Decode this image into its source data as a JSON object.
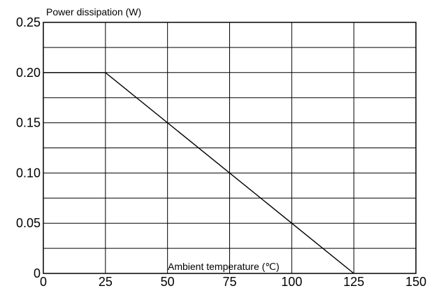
{
  "chart_data": {
    "type": "line",
    "ylabel": "Power dissipation (W)",
    "xlabel": "Ambient temperature (℃)",
    "xlim": [
      0,
      150
    ],
    "ylim": [
      0,
      0.25
    ],
    "x_ticks": [
      0,
      25,
      50,
      75,
      100,
      125,
      150
    ],
    "x_tick_labels": [
      "0",
      "25",
      "50",
      "75",
      "100",
      "125",
      "150"
    ],
    "y_ticks": [
      0,
      0.05,
      0.1,
      0.15,
      0.2,
      0.25
    ],
    "y_tick_labels": [
      "0",
      "0.05",
      "0.10",
      "0.15",
      "0.20",
      "0.25"
    ],
    "y_minor_gridlines": [
      0.025,
      0.075,
      0.125,
      0.175,
      0.225
    ],
    "grid": true,
    "series": [
      {
        "x": [
          0,
          25,
          125
        ],
        "y": [
          0.2,
          0.2,
          0
        ],
        "color": "#000000"
      }
    ]
  }
}
